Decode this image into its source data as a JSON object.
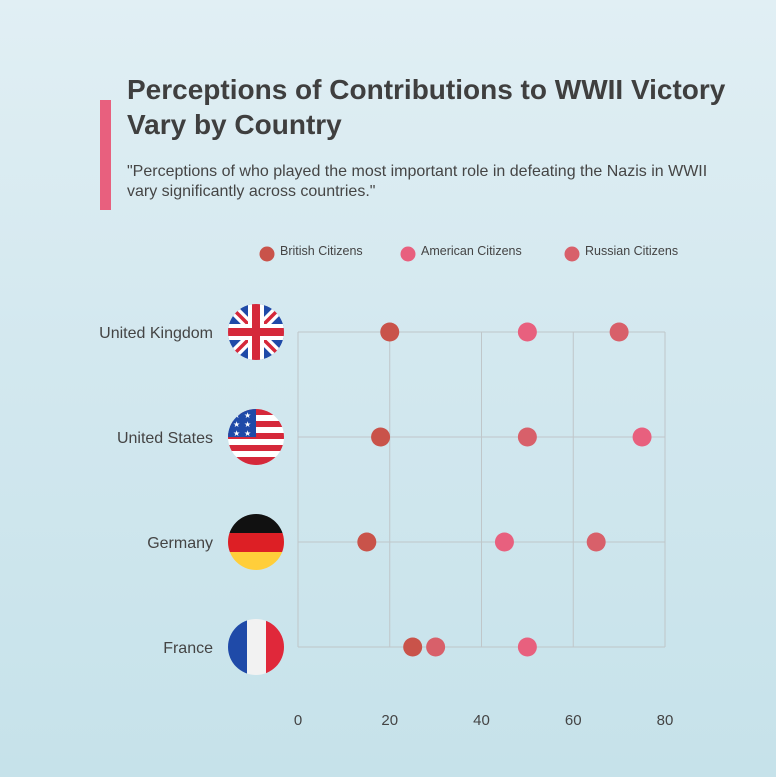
{
  "header": {
    "title": "Perceptions of Contributions to WWII Victory Vary by Country",
    "subtitle": "\"Perceptions of who played the most important role in defeating the Nazis in WWII vary significantly across countries.\""
  },
  "colors": {
    "accent": "#e8607e",
    "British Citizens": "#c9534a",
    "American Citizens": "#e8607e",
    "Russian Citizens": "#d8606a",
    "grid": "#bfc6c9"
  },
  "chart_data": {
    "type": "scatter",
    "title": "Perceptions of Contributions to WWII Victory Vary by Country",
    "xlabel": "",
    "ylabel": "",
    "xlim": [
      0,
      80
    ],
    "xticks": [
      0,
      20,
      40,
      60,
      80
    ],
    "grid": true,
    "legend_position": "top",
    "categories": [
      "United Kingdom",
      "United States",
      "Germany",
      "France"
    ],
    "category_icons": [
      "uk-flag-icon",
      "us-flag-icon",
      "germany-flag-icon",
      "france-flag-icon"
    ],
    "series": [
      {
        "name": "British Citizens",
        "values": [
          20,
          18,
          15,
          25
        ]
      },
      {
        "name": "American Citizens",
        "values": [
          50,
          75,
          45,
          50
        ]
      },
      {
        "name": "Russian Citizens",
        "values": [
          70,
          50,
          65,
          30
        ]
      }
    ]
  }
}
